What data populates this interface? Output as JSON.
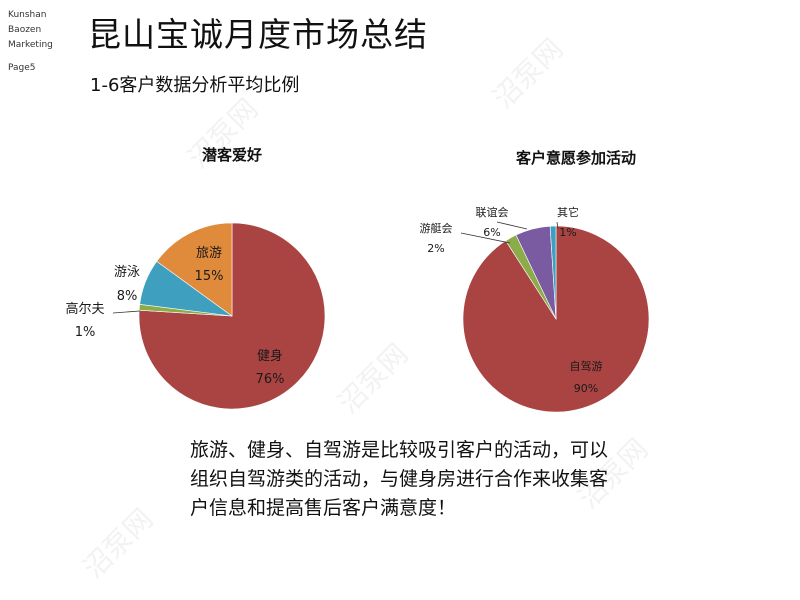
{
  "company": {
    "line1": "Kunshan",
    "line2": "Baozen",
    "line3": "Marketing",
    "page": "Page5"
  },
  "title": "昆山宝诚月度市场总结",
  "subtitle": "1-6客户数据分析平均比例",
  "summary": "旅游、健身、自驾游是比较吸引客户的活动，可以组织自驾游类的活动，与健身房进行合作来收集客户信息和提高售后客户满意度！",
  "watermark": "沼泵网",
  "chart_data": [
    {
      "type": "pie",
      "title": "潜客爱好",
      "categories": [
        "健身",
        "高尔夫",
        "游泳",
        "旅游"
      ],
      "values": [
        76,
        1,
        8,
        15
      ],
      "value_labels": [
        "76%",
        "1%",
        "8%",
        "15%"
      ],
      "colors": [
        "#a94442",
        "#8cac4a",
        "#3f9fbf",
        "#e08a3c"
      ],
      "start_angle_deg": 0,
      "direction": "clockwise"
    },
    {
      "type": "pie",
      "title": "客户意愿参加活动",
      "categories": [
        "自驾游",
        "游艇会",
        "联谊会",
        "其它"
      ],
      "values": [
        90,
        2,
        6,
        1
      ],
      "value_labels": [
        "90%",
        "2%",
        "6%",
        "1%"
      ],
      "colors": [
        "#a94442",
        "#8cac4a",
        "#7a5aa0",
        "#3f9fbf"
      ],
      "start_angle_deg": 0,
      "direction": "clockwise"
    }
  ]
}
